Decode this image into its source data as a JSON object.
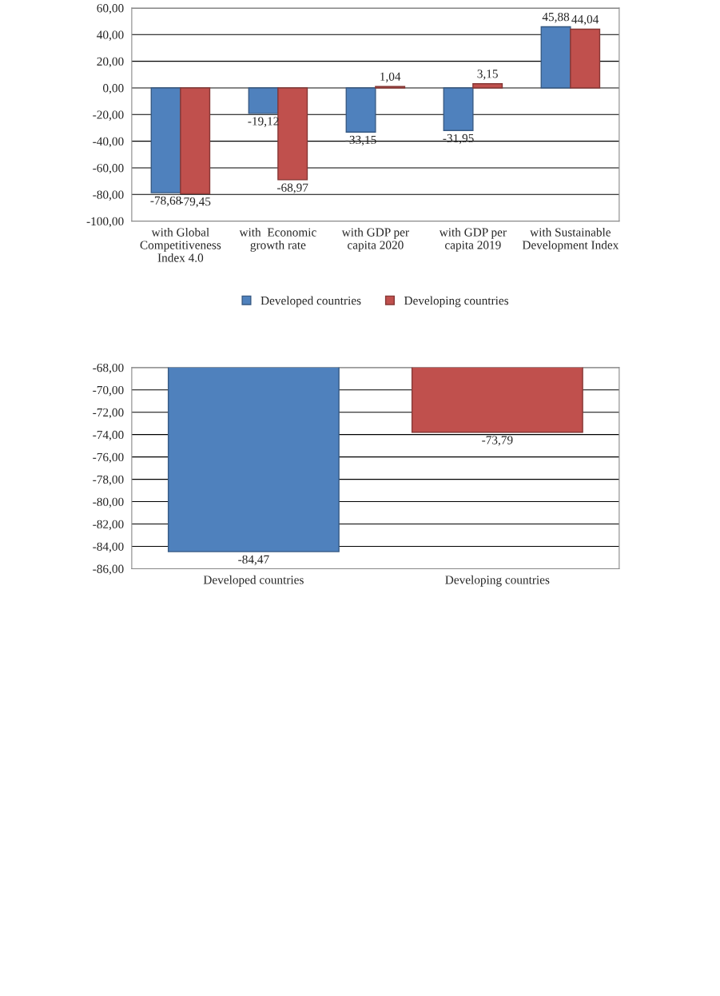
{
  "chart_data": [
    {
      "type": "bar",
      "categories": [
        "with Global\nCompetitiveness\nIndex 4.0",
        "with  Economic\ngrowth rate",
        "with GDP per\ncapita 2020",
        "with GDP per\ncapita 2019",
        "with Sustainable\nDevelopment Index"
      ],
      "series": [
        {
          "name": "Developed countries",
          "color": "#4f81bd",
          "values": [
            -78.68,
            -19.12,
            -33.15,
            -31.95,
            45.88
          ],
          "value_labels": [
            "-78,68",
            "-19,12",
            "-33,15",
            "-31,95",
            "45,88"
          ]
        },
        {
          "name": "Developing countries",
          "color": "#c0504d",
          "values": [
            -79.45,
            -68.97,
            1.04,
            3.15,
            44.04
          ],
          "value_labels": [
            "-79,45",
            "-68,97",
            "1,04",
            "3,15",
            "44,04"
          ]
        }
      ],
      "ylim": [
        -100,
        60
      ],
      "yticks": [
        {
          "value": -100,
          "label": "-100,00"
        },
        {
          "value": -80,
          "label": "-80,00"
        },
        {
          "value": -60,
          "label": "-60,00"
        },
        {
          "value": -40,
          "label": "-40,00"
        },
        {
          "value": -20,
          "label": "-20,00"
        },
        {
          "value": 0,
          "label": "0,00"
        },
        {
          "value": 20,
          "label": "20,00"
        },
        {
          "value": 40,
          "label": "40,00"
        },
        {
          "value": 60,
          "label": "60,00"
        }
      ],
      "grid": "y",
      "legend": "bottom"
    },
    {
      "type": "bar",
      "categories": [
        "Developed countries",
        "Developing countries"
      ],
      "values": [
        -84.47,
        -73.79
      ],
      "colors": [
        "#4f81bd",
        "#c0504d"
      ],
      "value_labels": [
        "-84,47",
        "-73,79"
      ],
      "ylim": [
        -86,
        -68
      ],
      "yticks": [
        {
          "value": -86,
          "label": "-86,00"
        },
        {
          "value": -84,
          "label": "-84,00"
        },
        {
          "value": -82,
          "label": "-82,00"
        },
        {
          "value": -80,
          "label": "-80,00"
        },
        {
          "value": -78,
          "label": "-78,00"
        },
        {
          "value": -76,
          "label": "-76,00"
        },
        {
          "value": -74,
          "label": "-74,00"
        },
        {
          "value": -72,
          "label": "-72,00"
        },
        {
          "value": -70,
          "label": "-70,00"
        },
        {
          "value": -68,
          "label": "-68,00"
        }
      ],
      "grid": "y",
      "legend": false
    }
  ]
}
